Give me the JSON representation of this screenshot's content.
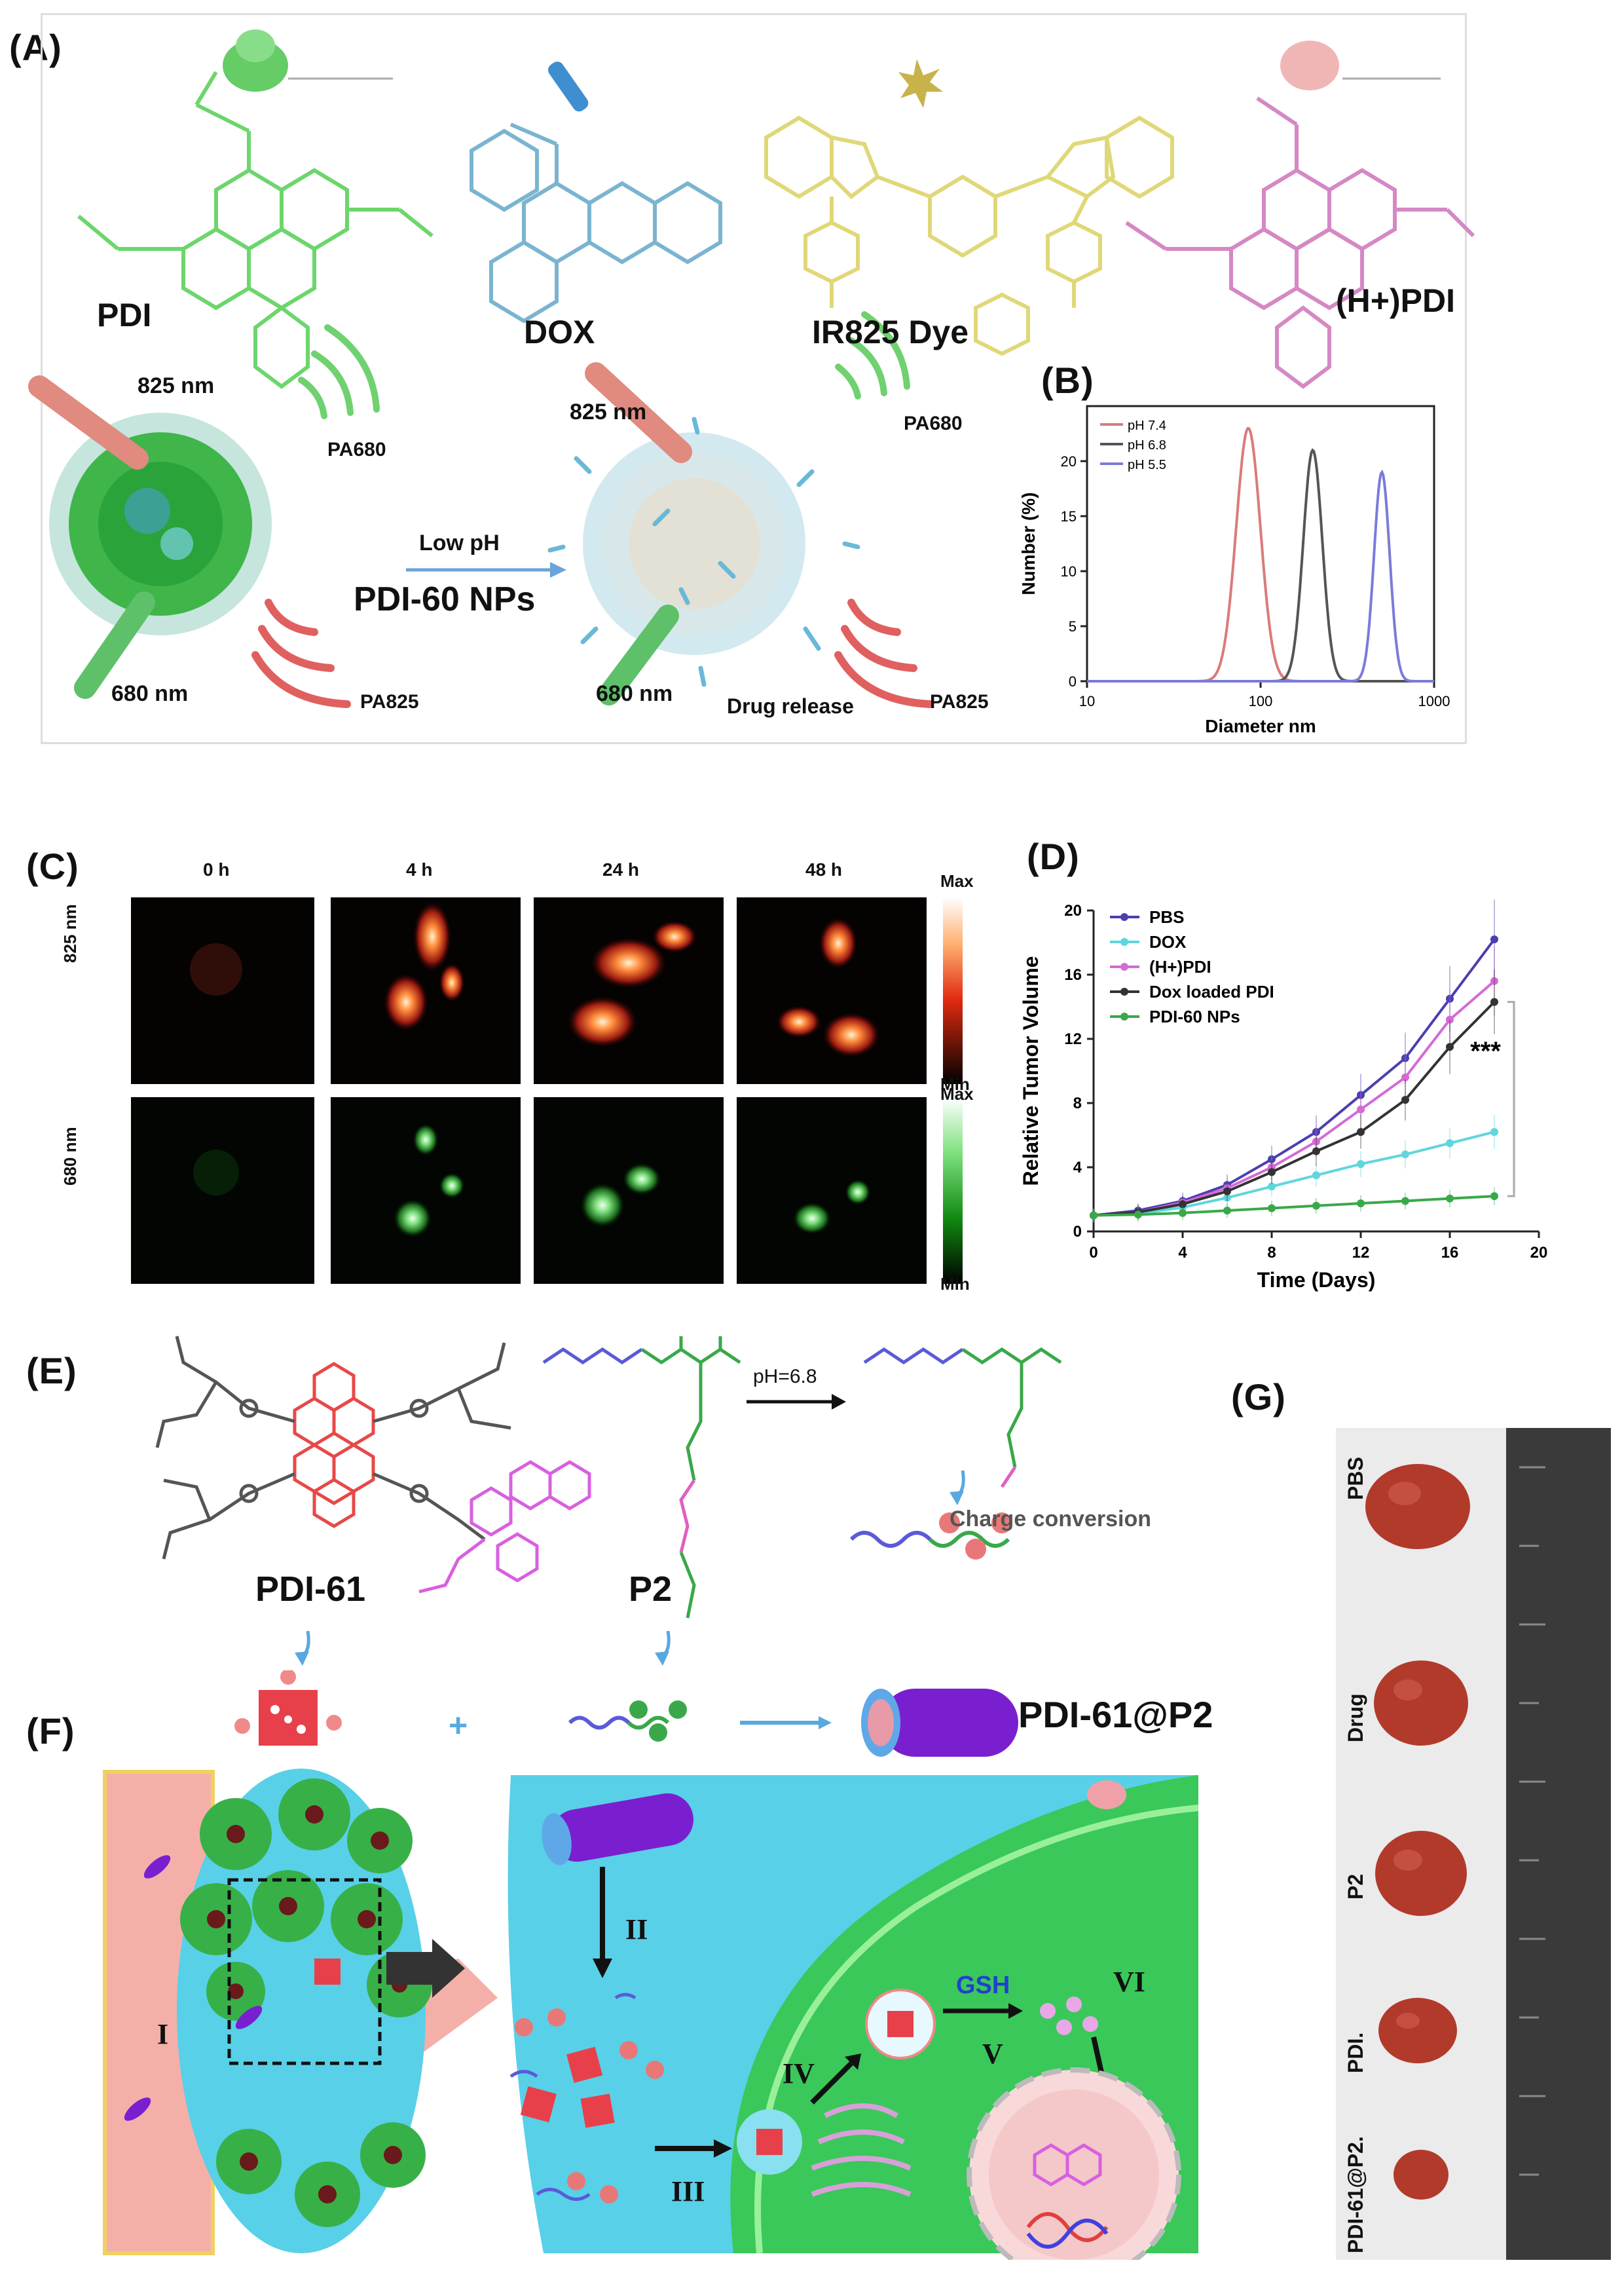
{
  "panels": {
    "A": "(A)",
    "B": "(B)",
    "C": "(C)",
    "D": "(D)",
    "E": "(E)",
    "F": "(F)",
    "G": "(G)"
  },
  "panel_a": {
    "molecules": [
      "PDI",
      "DOX",
      "IR825 Dye",
      "(H+)PDI"
    ],
    "left": {
      "laser_top": "825 nm",
      "laser_bottom": "680 nm",
      "pa_top": "PA680",
      "pa_bottom": "PA825"
    },
    "arrow_label": "Low pH",
    "np_label": "PDI-60 NPs",
    "right": {
      "laser_top": "825 nm",
      "laser_bottom": "680 nm",
      "pa_top": "PA680",
      "pa_bottom": "PA825",
      "release": "Drug release"
    }
  },
  "panel_c": {
    "time_labels": [
      "0 h",
      "4 h",
      "24 h",
      "48 h"
    ],
    "row_labels": [
      "825 nm",
      "680 nm"
    ],
    "colorbar_max": "Max",
    "colorbar_min": "Min"
  },
  "panel_e": {
    "labels": {
      "pdi61": "PDI-61",
      "p2": "P2",
      "ph": "pH=6.8",
      "charge": "Charge conversion"
    }
  },
  "panel_f": {
    "product": "PDI-61@P2",
    "plus": "+",
    "steps": [
      "I",
      "II",
      "III",
      "IV",
      "V",
      "VI"
    ],
    "gsh": "GSH"
  },
  "panel_g": {
    "rows": [
      "PBS",
      "Drug",
      "P2",
      "PDI.",
      "PDI-61@P2."
    ]
  },
  "chart_data": [
    {
      "id": "B",
      "type": "line",
      "xlabel": "Diameter nm",
      "ylabel": "Number (%)",
      "xscale": "log",
      "xlim": [
        10,
        1000
      ],
      "ylim": [
        0,
        25
      ],
      "xticks": [
        "10",
        "100",
        "1000"
      ],
      "yticks": [
        "0",
        "5",
        "10",
        "15",
        "20"
      ],
      "legend_position": "top-left",
      "series": [
        {
          "name": "pH 7.4",
          "color": "#d97b7b",
          "peak_x": 85,
          "peak_y": 23,
          "width": 0.07
        },
        {
          "name": "pH 6.8",
          "color": "#555555",
          "peak_x": 200,
          "peak_y": 21,
          "width": 0.055
        },
        {
          "name": "pH 5.5",
          "color": "#7b7bd9",
          "peak_x": 500,
          "peak_y": 19,
          "width": 0.045
        }
      ]
    },
    {
      "id": "D",
      "type": "line",
      "xlabel": "Time (Days)",
      "ylabel": "Relative Tumor Volume",
      "xlim": [
        0,
        20
      ],
      "ylim": [
        0,
        20
      ],
      "xticks": [
        "0",
        "4",
        "8",
        "12",
        "16",
        "20"
      ],
      "yticks": [
        "0",
        "4",
        "8",
        "12",
        "16",
        "20"
      ],
      "legend_position": "top-left",
      "annotation": "***",
      "x": [
        0,
        2,
        4,
        6,
        8,
        10,
        12,
        14,
        16,
        18
      ],
      "series": [
        {
          "name": "PBS",
          "color": "#4b3fb0",
          "values": [
            1,
            1.3,
            1.9,
            2.9,
            4.5,
            6.2,
            8.5,
            10.8,
            14.5,
            18.2
          ]
        },
        {
          "name": "DOX",
          "color": "#5fd6dc",
          "values": [
            1,
            1.1,
            1.5,
            2.1,
            2.8,
            3.5,
            4.2,
            4.8,
            5.5,
            6.2
          ]
        },
        {
          "name": "(H+)PDI",
          "color": "#d46ad6",
          "values": [
            1,
            1.2,
            1.8,
            2.7,
            4.0,
            5.6,
            7.6,
            9.6,
            13.2,
            15.6
          ]
        },
        {
          "name": "Dox loaded PDI",
          "color": "#333333",
          "values": [
            1,
            1.2,
            1.7,
            2.5,
            3.7,
            5.0,
            6.2,
            8.2,
            11.5,
            14.3
          ]
        },
        {
          "name": "PDI-60 NPs",
          "color": "#3aa84a",
          "values": [
            1,
            1.05,
            1.15,
            1.3,
            1.45,
            1.6,
            1.75,
            1.9,
            2.05,
            2.2
          ]
        }
      ]
    }
  ]
}
